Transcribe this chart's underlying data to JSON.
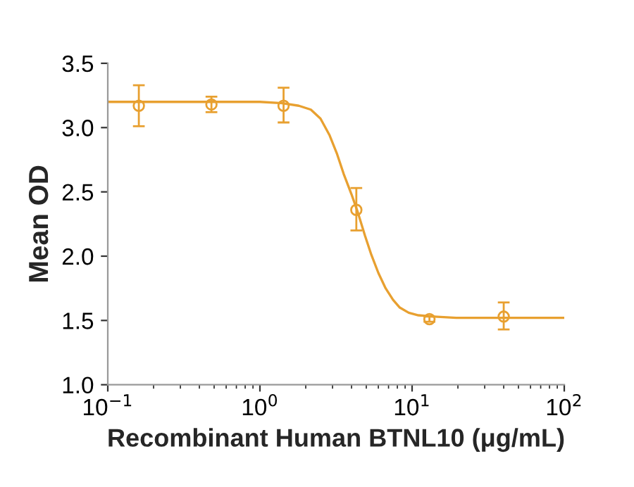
{
  "chart_data": {
    "type": "scatter",
    "xlabel": "Recombinant Human BTNL10 (μg/mL)",
    "ylabel": "Mean OD",
    "log": "x",
    "grid": false,
    "legend": false,
    "xlim": [
      0.1,
      100
    ],
    "xticks": [
      {
        "value": 0.1,
        "label": "10$^{−1}$"
      },
      {
        "value": 1,
        "label": "10$^{0}$"
      },
      {
        "value": 10,
        "label": "10$^{1}$"
      },
      {
        "value": 100,
        "label": "10$^{2}$"
      }
    ],
    "ylim": [
      1.0,
      3.5
    ],
    "yticks": [
      {
        "value": 1.0,
        "label": "1.0"
      },
      {
        "value": 1.5,
        "label": "1.5"
      },
      {
        "value": 2.0,
        "label": "2.0"
      },
      {
        "value": 2.5,
        "label": "2.5"
      },
      {
        "value": 3.0,
        "label": "3.0"
      },
      {
        "value": 3.5,
        "label": "3.5"
      }
    ],
    "series": [
      {
        "color": "#e8a030",
        "marker": "circle",
        "x": [
          0.16,
          0.48,
          1.43,
          4.3,
          13,
          40
        ],
        "values": [
          3.17,
          3.18,
          3.17,
          2.36,
          1.51,
          1.53
        ],
        "errors": [
          [
            3.01,
            3.33
          ],
          [
            3.12,
            3.24
          ],
          [
            3.04,
            3.31
          ],
          [
            2.2,
            2.53
          ],
          [
            1.49,
            1.53
          ],
          [
            1.43,
            1.64
          ]
        ]
      },
      {
        "type": "line",
        "color": "#e8a030",
        "marker": "none",
        "line_style": "solid",
        "x": [
          0.1,
          0.5,
          1.0,
          1.4,
          1.8,
          2.16,
          2.5,
          2.87,
          3.2,
          3.55,
          4.0,
          4.4,
          4.9,
          5.4,
          6.0,
          6.7,
          7.5,
          8.3,
          9.5,
          11,
          14,
          19.5,
          40,
          100
        ],
        "values": [
          3.2,
          3.2,
          3.2,
          3.19,
          3.17,
          3.14,
          3.07,
          2.94,
          2.8,
          2.64,
          2.48,
          2.34,
          2.16,
          2.01,
          1.87,
          1.75,
          1.66,
          1.6,
          1.56,
          1.54,
          1.53,
          1.52,
          1.52,
          1.52
        ]
      }
    ]
  }
}
